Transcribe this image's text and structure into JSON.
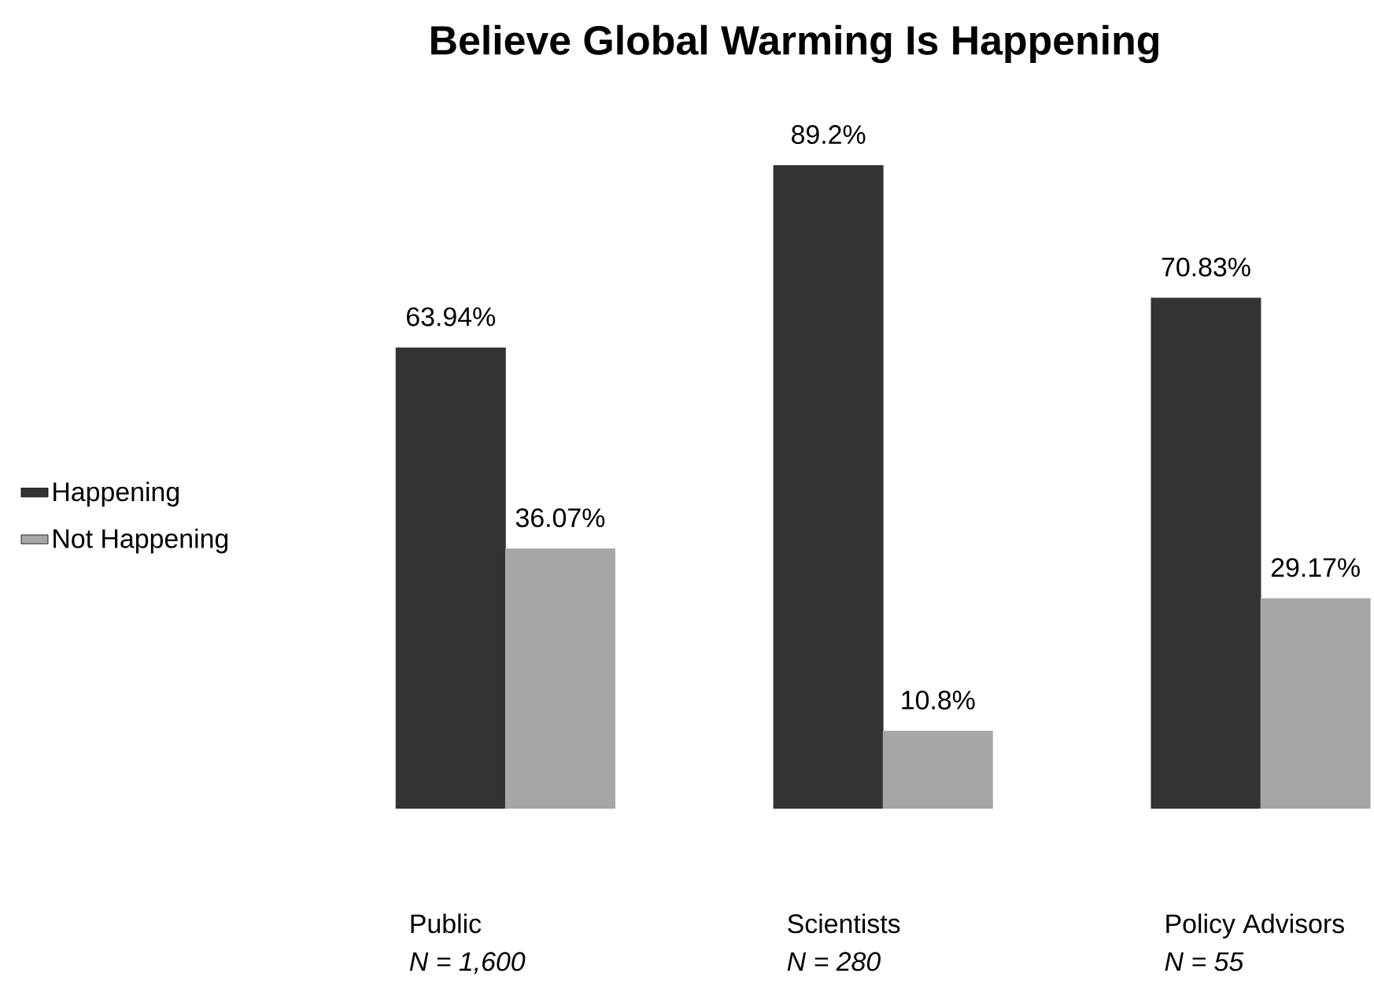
{
  "chart_data": {
    "type": "bar",
    "title": "Believe Global Warming Is Happening",
    "categories": [
      "Public",
      "Scientists",
      "Policy Advisors"
    ],
    "series": [
      {
        "name": "Happening",
        "color": "#333333",
        "values": [
          63.94,
          89.2,
          70.83
        ],
        "value_labels": [
          "63.94%",
          "89.2%",
          "70.83%"
        ]
      },
      {
        "name": "Not Happening",
        "color": "#a6a6a6",
        "values": [
          36.07,
          10.8,
          29.17
        ],
        "value_labels": [
          "36.07%",
          "10.8%",
          "29.17%"
        ]
      }
    ],
    "legend": "left",
    "annotations": [
      "N = 1,600",
      "N = 280",
      "N = 55"
    ]
  }
}
